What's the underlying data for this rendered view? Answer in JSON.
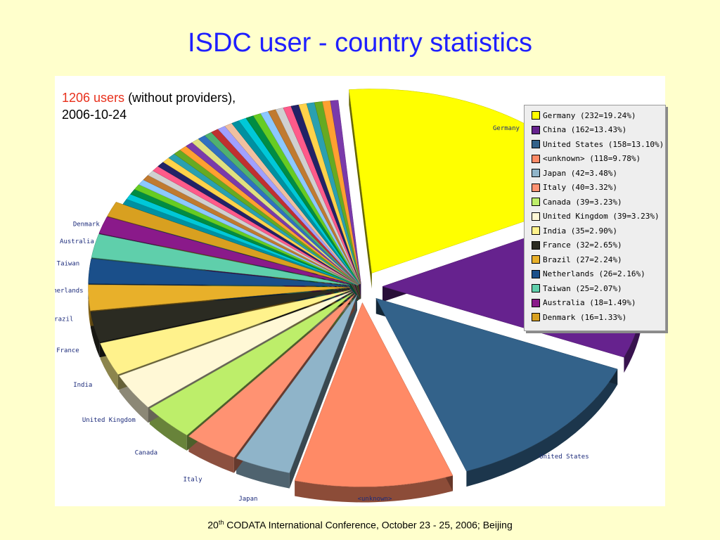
{
  "slide": {
    "title": "ISDC user - country statistics",
    "note_users": "1206 users",
    "note_rest": " (without providers),",
    "note_date": "2006-10-24",
    "footer_pre": "20",
    "footer_sup": "th",
    "footer_post": " CODATA International Conference, October 23 - 25, 2006; Beijing"
  },
  "chart_data": {
    "type": "pie",
    "title": "",
    "total": 1206,
    "legend_position": "top-right",
    "legend": [
      "Germany (232=19.24%)",
      "China (162=13.43%)",
      "United States (158=13.10%)",
      "<unknown> (118=9.78%)",
      "Japan (42=3.48%)",
      "Italy (40=3.32%)",
      "Canada (39=3.23%)",
      "United Kingdom (39=3.23%)",
      "India (35=2.90%)",
      "France (32=2.65%)",
      "Brazil (27=2.24%)",
      "Netherlands (26=2.16%)",
      "Taiwan (25=2.07%)",
      "Australia (18=1.49%)",
      "Denmark (16=1.33%)"
    ],
    "slices": [
      {
        "label": "Germany",
        "value": 232,
        "percent": 19.24,
        "color": "#ffff00",
        "exploded": true
      },
      {
        "label": "China",
        "value": 162,
        "percent": 13.43,
        "color": "#66228e",
        "exploded": true
      },
      {
        "label": "United States",
        "value": 158,
        "percent": 13.1,
        "color": "#33628a",
        "exploded": true
      },
      {
        "label": "<unknown>",
        "value": 118,
        "percent": 9.78,
        "color": "#ff8a66",
        "exploded": true
      },
      {
        "label": "Japan",
        "value": 42,
        "percent": 3.48,
        "color": "#8fb4c9",
        "exploded": true
      },
      {
        "label": "Italy",
        "value": 40,
        "percent": 3.32,
        "color": "#ff9272",
        "exploded": true
      },
      {
        "label": "Canada",
        "value": 39,
        "percent": 3.23,
        "color": "#bdee6a",
        "exploded": true
      },
      {
        "label": "United Kingdom",
        "value": 39,
        "percent": 3.23,
        "color": "#fff8d6",
        "exploded": true
      },
      {
        "label": "India",
        "value": 35,
        "percent": 2.9,
        "color": "#fff28c",
        "exploded": true
      },
      {
        "label": "France",
        "value": 32,
        "percent": 2.65,
        "color": "#2b2b22",
        "exploded": true
      },
      {
        "label": "Brazil",
        "value": 27,
        "percent": 2.24,
        "color": "#e8b02a",
        "exploded": true
      },
      {
        "label": "Netherlands",
        "value": 26,
        "percent": 2.16,
        "color": "#1a4f8a",
        "exploded": true
      },
      {
        "label": "Taiwan",
        "value": 25,
        "percent": 2.07,
        "color": "#5fcfab",
        "exploded": true
      },
      {
        "label": "Australia",
        "value": 18,
        "percent": 1.49,
        "color": "#8a1a8a",
        "exploded": true
      },
      {
        "label": "Denmark",
        "value": 16,
        "percent": 1.33,
        "color": "#d8a020",
        "exploded": true
      }
    ],
    "other_countries_value": 197,
    "other_countries_colors": [
      "#0090a0",
      "#00c8d8",
      "#008c44",
      "#66cc22",
      "#8cc8ff",
      "#c07a30",
      "#d0d0d0",
      "#ff5a8a",
      "#222266",
      "#ffd24a",
      "#2aa0b0",
      "#66aa22",
      "#ffa030",
      "#7a3aaa",
      "#e0e080",
      "#3070c0",
      "#50b070",
      "#c03030",
      "#a0a0ff",
      "#f0c0a0"
    ]
  }
}
